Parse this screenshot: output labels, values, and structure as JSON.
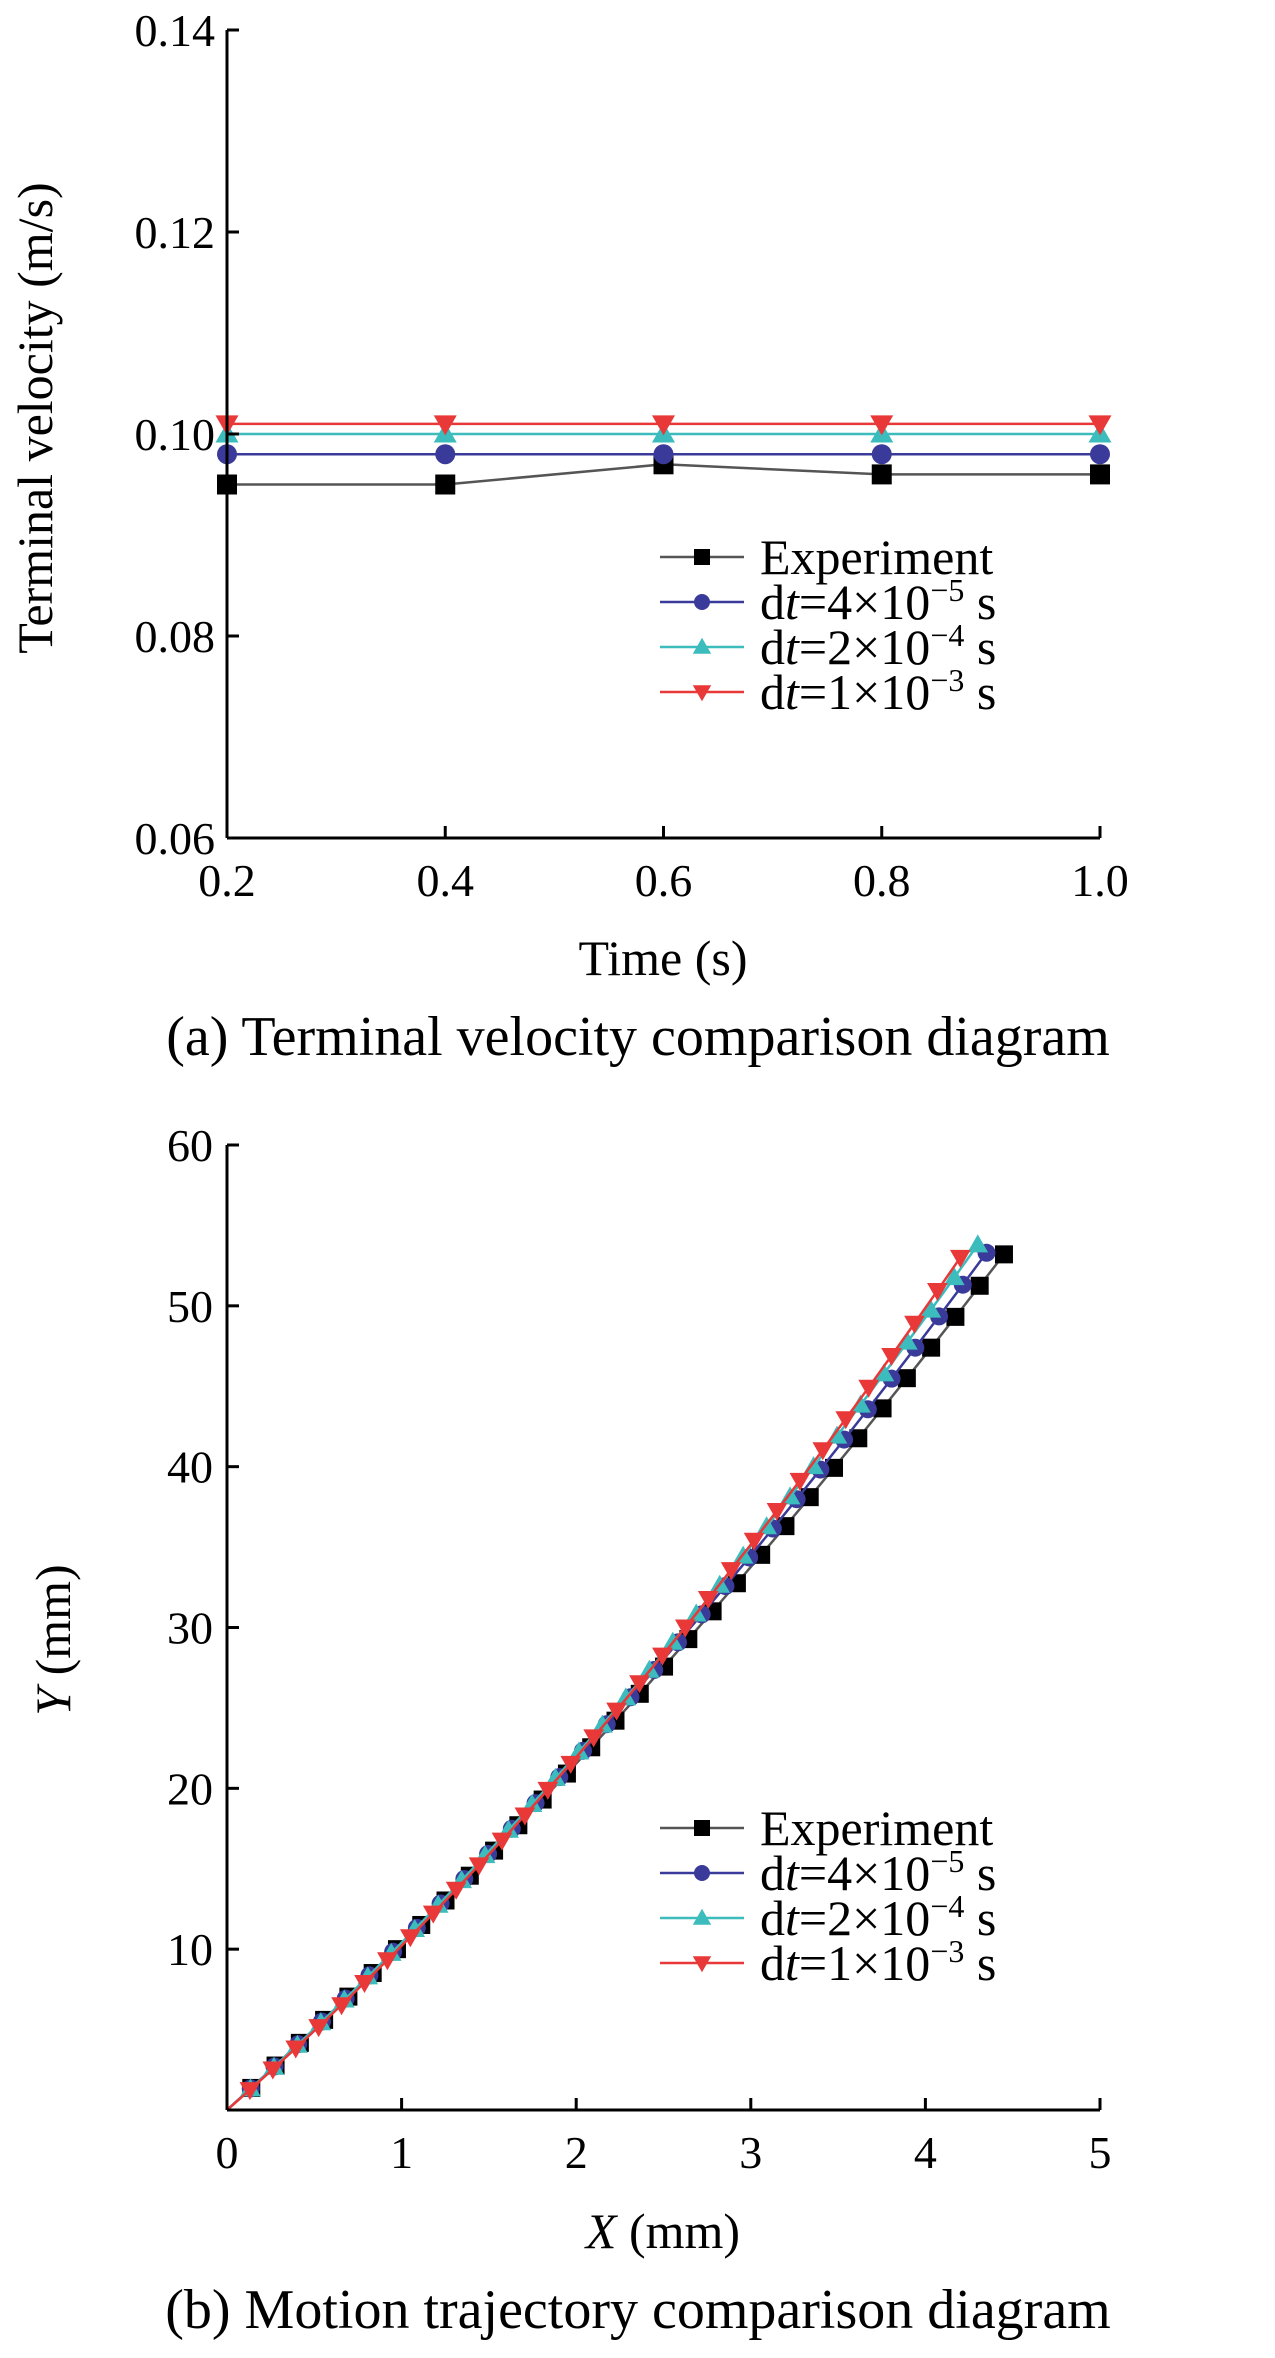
{
  "chart_data": [
    {
      "type": "line",
      "caption": "(a) Terminal velocity comparison diagram",
      "xlabel": "Time (s)",
      "ylabel": "Terminal velocity (m/s)",
      "xlim": [
        0.2,
        1.0
      ],
      "ylim": [
        0.06,
        0.14
      ],
      "xticks": [
        "0.2",
        "0.4",
        "0.6",
        "0.8",
        "1.0"
      ],
      "yticks": [
        "0.06",
        "0.08",
        "0.10",
        "0.12",
        "0.14"
      ],
      "legend_position": "bottom-right",
      "x": [
        0.2,
        0.4,
        0.6,
        0.8,
        1.0
      ],
      "series": [
        {
          "name": "Experiment",
          "name_parts": [
            "Experiment",
            "",
            "",
            "",
            ""
          ],
          "marker": "square",
          "color": "#000000",
          "line_color": "#555555",
          "values": [
            0.095,
            0.095,
            0.097,
            0.096,
            0.096
          ]
        },
        {
          "name": "dt=4×10−5 s",
          "name_parts": [
            "d",
            "t",
            "=4×10",
            "−5",
            " s"
          ],
          "marker": "circle",
          "color": "#3a3a9a",
          "line_color": "#3a3a9a",
          "values": [
            0.098,
            0.098,
            0.098,
            0.098,
            0.098
          ]
        },
        {
          "name": "dt=2×10−4 s",
          "name_parts": [
            "d",
            "t",
            "=2×10",
            "−4",
            " s"
          ],
          "marker": "triangle-up",
          "color": "#3cbcbc",
          "line_color": "#3cbcbc",
          "values": [
            0.1,
            0.1,
            0.1,
            0.1,
            0.1
          ]
        },
        {
          "name": "dt=1×10−3 s",
          "name_parts": [
            "d",
            "t",
            "=1×10",
            "−3",
            " s"
          ],
          "marker": "triangle-down",
          "color": "#e83838",
          "line_color": "#e83838",
          "values": [
            0.101,
            0.101,
            0.101,
            0.101,
            0.101
          ]
        }
      ]
    },
    {
      "type": "line",
      "caption": "(b) Motion trajectory comparison diagram",
      "xlabel_var": "X",
      "xlabel_unit": " (mm)",
      "ylabel_var": "Y",
      "ylabel_unit": " (mm)",
      "xlim": [
        0,
        5
      ],
      "ylim": [
        0,
        60
      ],
      "xticks": [
        "0",
        "1",
        "2",
        "3",
        "4",
        "5"
      ],
      "yticks": [
        "10",
        "20",
        "30",
        "40",
        "50",
        "60"
      ],
      "legend_position": "bottom-right",
      "series": [
        {
          "name": "Experiment",
          "name_parts": [
            "Experiment",
            "",
            "",
            "",
            ""
          ],
          "marker": "square",
          "color": "#000000",
          "line_color": "#555555",
          "x_end": 4.45,
          "y_end": 53.2,
          "curvature": 0.18,
          "points": 33
        },
        {
          "name": "dt=4×10−5 s",
          "name_parts": [
            "d",
            "t",
            "=4×10",
            "−5",
            " s"
          ],
          "marker": "circle",
          "color": "#3a3a9a",
          "line_color": "#3a3a9a",
          "x_end": 4.35,
          "y_end": 53.3,
          "curvature": 0.2,
          "points": 33
        },
        {
          "name": "dt=2×10−4 s",
          "name_parts": [
            "d",
            "t",
            "=2×10",
            "−4",
            " s"
          ],
          "marker": "triangle-up",
          "color": "#3cbcbc",
          "line_color": "#3cbcbc",
          "x_end": 4.3,
          "y_end": 53.8,
          "curvature": 0.22,
          "points": 33
        },
        {
          "name": "dt=1×10−3 s",
          "name_parts": [
            "d",
            "t",
            "=1×10",
            "−3",
            " s"
          ],
          "marker": "triangle-down",
          "color": "#e83838",
          "line_color": "#e83838",
          "x_end": 4.2,
          "y_end": 53.0,
          "curvature": 0.25,
          "points": 33
        }
      ]
    }
  ]
}
